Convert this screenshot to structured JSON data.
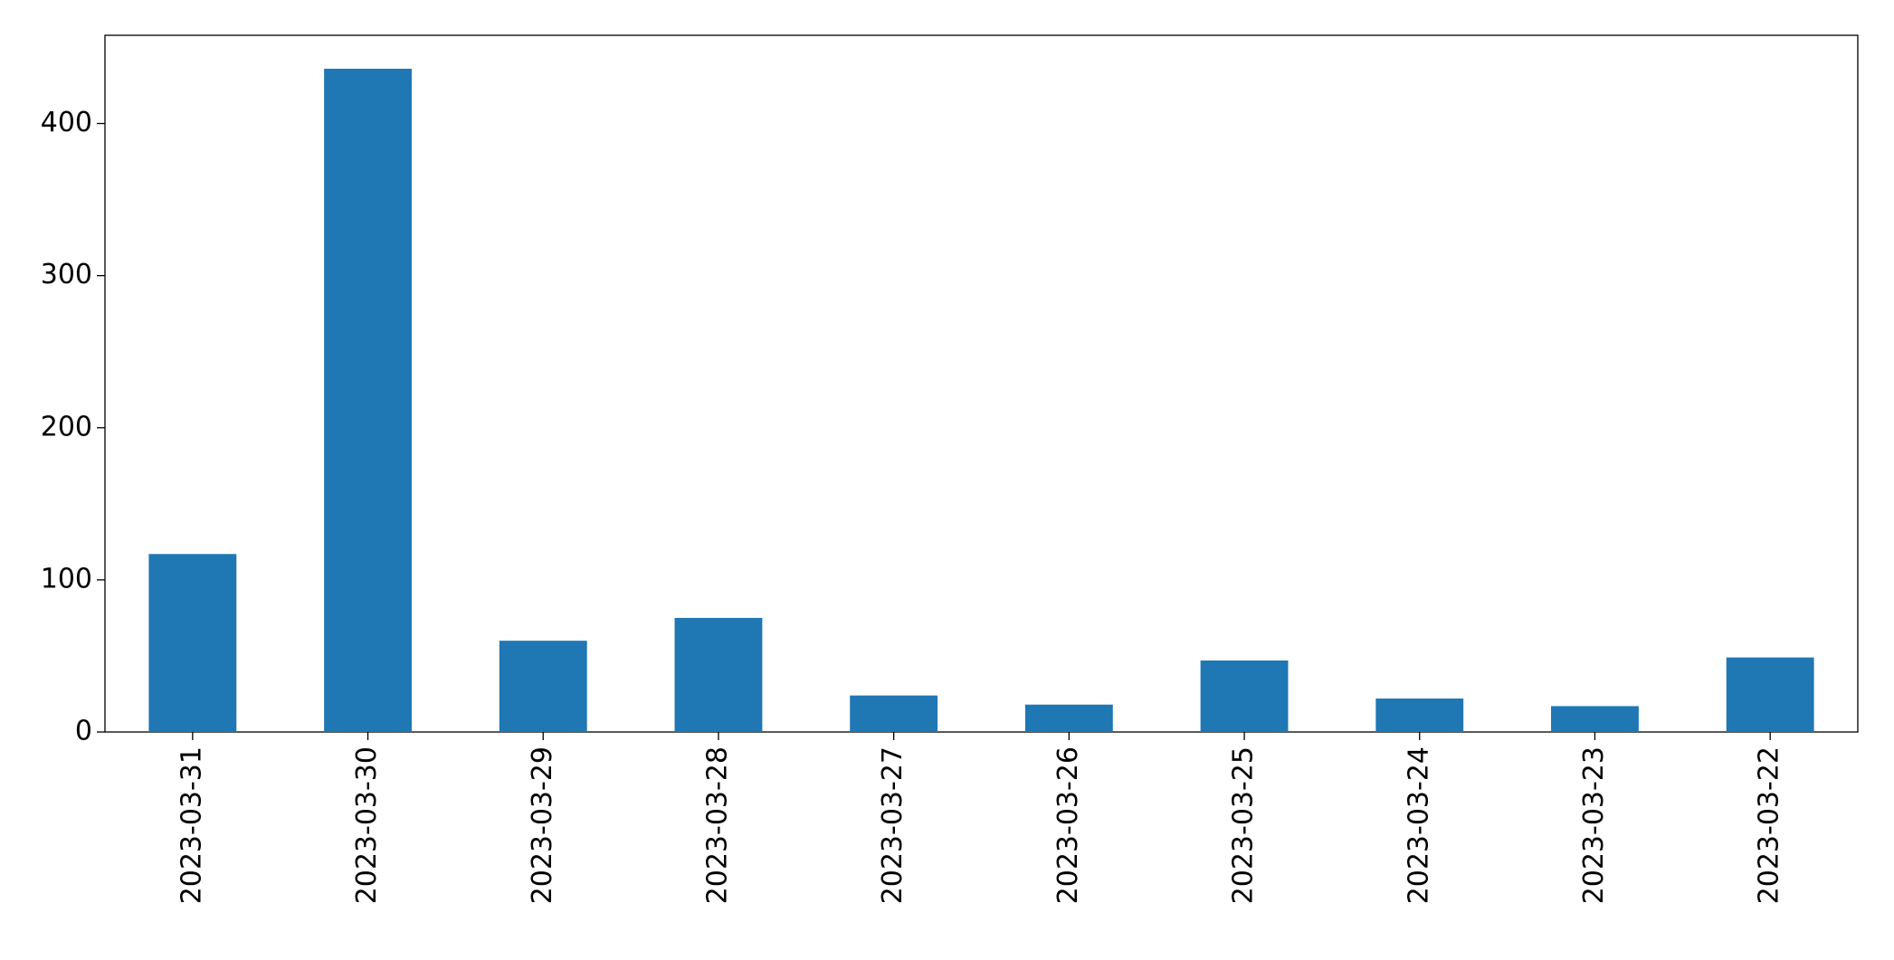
{
  "chart_data": {
    "type": "bar",
    "categories": [
      "2023-03-31",
      "2023-03-30",
      "2023-03-29",
      "2023-03-28",
      "2023-03-27",
      "2023-03-26",
      "2023-03-25",
      "2023-03-24",
      "2023-03-23",
      "2023-03-22"
    ],
    "values": [
      117,
      436,
      60,
      75,
      24,
      18,
      47,
      22,
      17,
      49
    ],
    "color": "#1f77b4",
    "ylim": [
      0,
      458
    ],
    "yticks": [
      0,
      100,
      200,
      300,
      400
    ],
    "grid": false
  }
}
